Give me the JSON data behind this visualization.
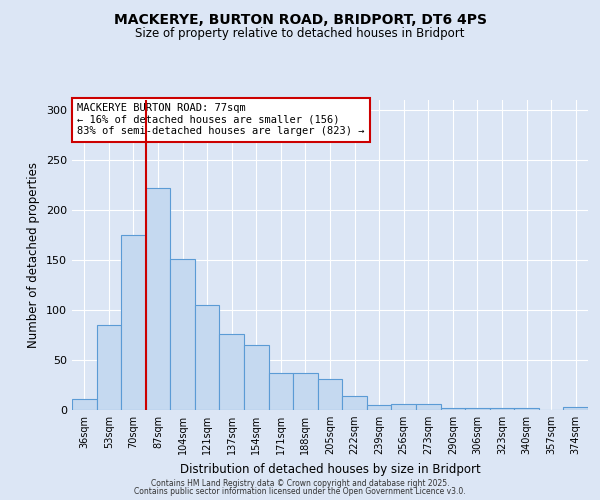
{
  "title_line1": "MACKERYE, BURTON ROAD, BRIDPORT, DT6 4PS",
  "title_line2": "Size of property relative to detached houses in Bridport",
  "xlabel": "Distribution of detached houses by size in Bridport",
  "ylabel": "Number of detached properties",
  "categories": [
    "36sqm",
    "53sqm",
    "70sqm",
    "87sqm",
    "104sqm",
    "121sqm",
    "137sqm",
    "154sqm",
    "171sqm",
    "188sqm",
    "205sqm",
    "222sqm",
    "239sqm",
    "256sqm",
    "273sqm",
    "290sqm",
    "306sqm",
    "323sqm",
    "340sqm",
    "357sqm",
    "374sqm"
  ],
  "values": [
    11,
    85,
    175,
    222,
    151,
    105,
    76,
    65,
    37,
    37,
    31,
    14,
    5,
    6,
    6,
    2,
    2,
    2,
    2,
    0,
    3
  ],
  "bar_color": "#c5d9f0",
  "bar_edge_color": "#5b9bd5",
  "background_color": "#dce6f5",
  "grid_color": "#ffffff",
  "vline_x": 2.5,
  "vline_color": "#cc0000",
  "annotation_title": "MACKERYE BURTON ROAD: 77sqm",
  "annotation_line1": "← 16% of detached houses are smaller (156)",
  "annotation_line2": "83% of semi-detached houses are larger (823) →",
  "annotation_box_color": "#ffffff",
  "annotation_box_edge": "#cc0000",
  "ylim": [
    0,
    310
  ],
  "yticks": [
    0,
    50,
    100,
    150,
    200,
    250,
    300
  ],
  "footer_line1": "Contains HM Land Registry data © Crown copyright and database right 2025.",
  "footer_line2": "Contains public sector information licensed under the Open Government Licence v3.0."
}
